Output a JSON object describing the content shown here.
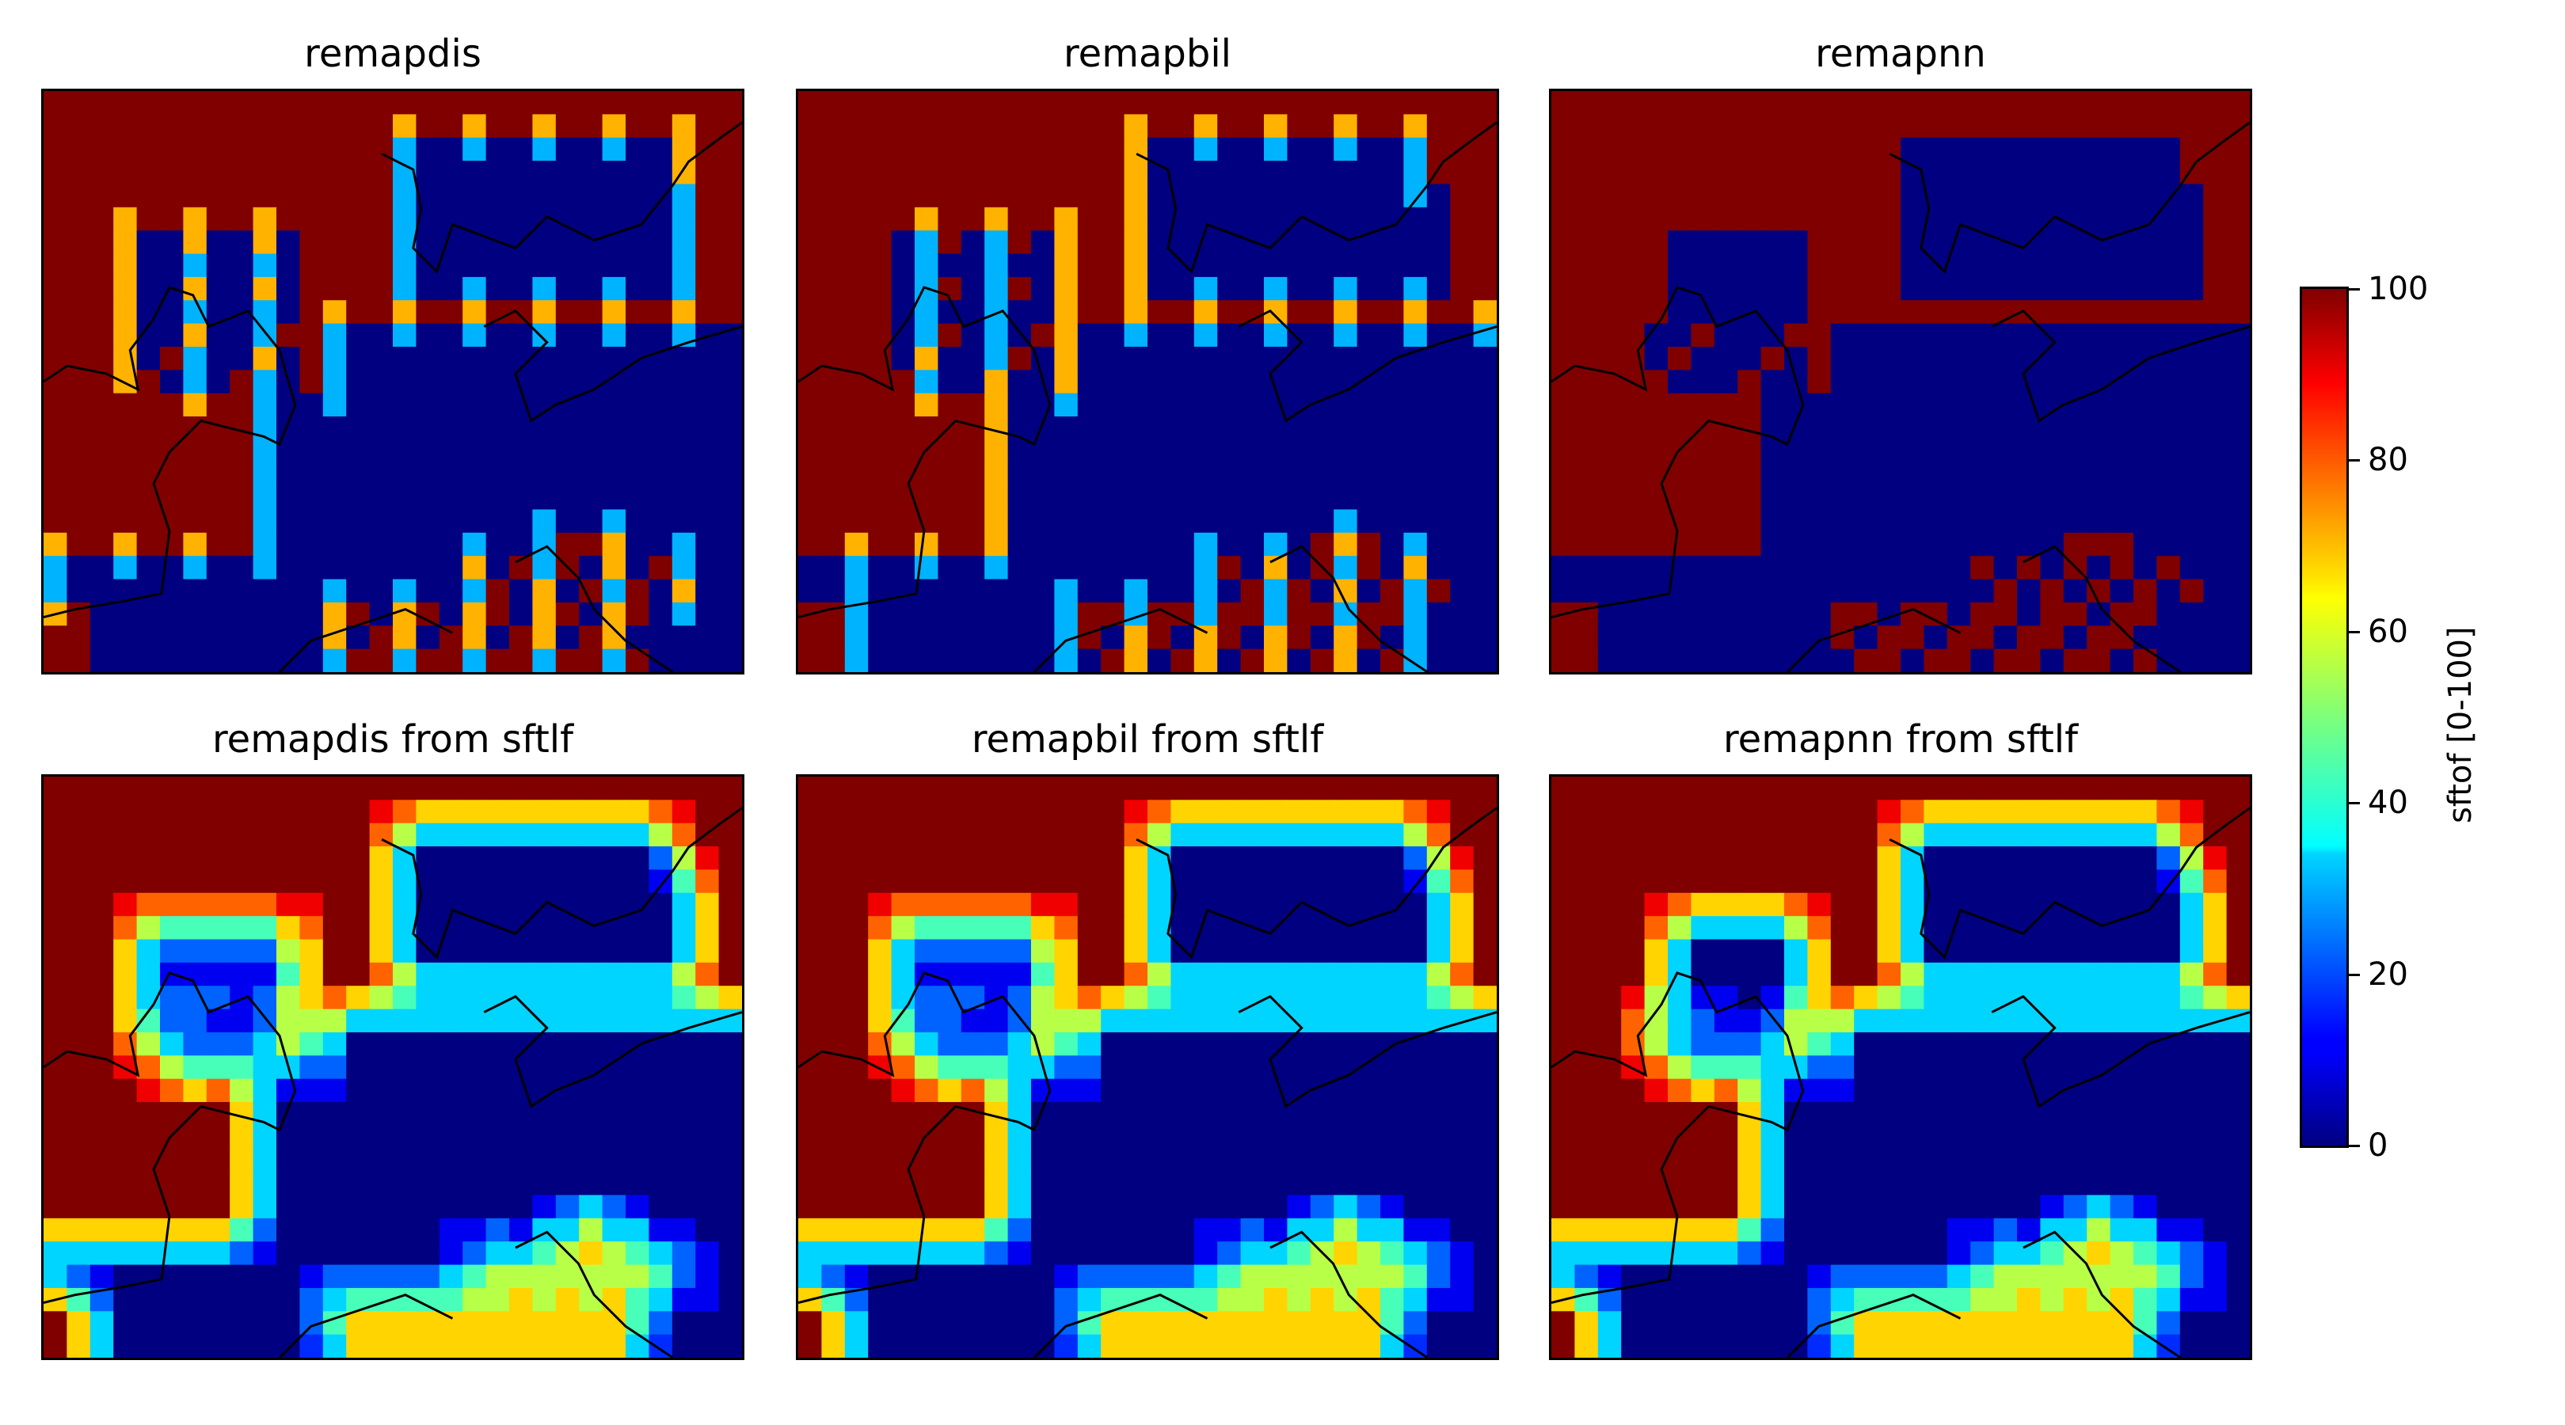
{
  "chart_data": [
    {
      "type": "heatmap",
      "title": "remapdis",
      "variable": "sftof",
      "data_range": [
        0,
        100
      ],
      "colormap": "jet",
      "coastline": true
    },
    {
      "type": "heatmap",
      "title": "remapbil",
      "variable": "sftof",
      "data_range": [
        0,
        100
      ],
      "colormap": "jet",
      "coastline": true
    },
    {
      "type": "heatmap",
      "title": "remapnn",
      "variable": "sftof",
      "data_range": [
        0,
        100
      ],
      "colormap": "jet",
      "coastline": true
    },
    {
      "type": "heatmap",
      "title": "remapdis from sftlf",
      "variable": "sftof",
      "data_range": [
        0,
        100
      ],
      "colormap": "jet",
      "coastline": true
    },
    {
      "type": "heatmap",
      "title": "remapbil from sftlf",
      "variable": "sftof",
      "data_range": [
        0,
        100
      ],
      "colormap": "jet",
      "coastline": true
    },
    {
      "type": "heatmap",
      "title": "remapnn from sftlf",
      "variable": "sftof",
      "data_range": [
        0,
        100
      ],
      "colormap": "jet",
      "coastline": true
    }
  ],
  "colorbar": {
    "label": "sftof [0-100]",
    "ticks": [
      "0",
      "20",
      "40",
      "60",
      "80",
      "100"
    ],
    "min": 0,
    "max": 100
  },
  "colors": {
    "low": "#000080",
    "high": "#800000",
    "coastline": "#000000"
  }
}
